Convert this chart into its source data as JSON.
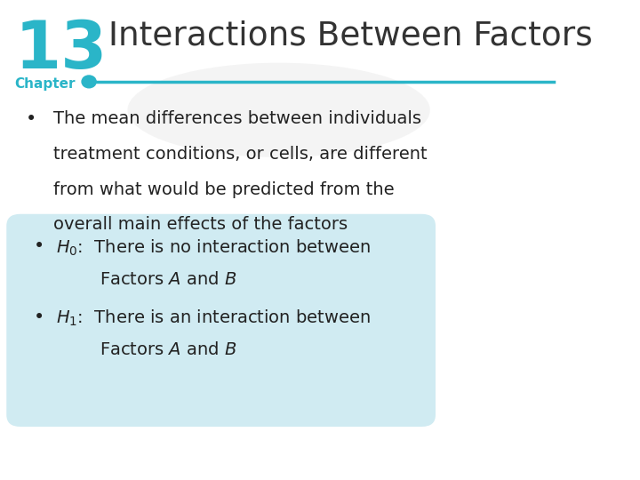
{
  "title": "Interactions Between Factors",
  "chapter_number": "13",
  "chapter_label": "Chapter",
  "chapter_number_color": "#2ab5c8",
  "chapter_label_color": "#2ab5c8",
  "title_color": "#333333",
  "line_color": "#2ab5c8",
  "background_color": "#ffffff",
  "bullet1_line1": "The mean differences between individuals",
  "bullet1_line2": "treatment conditions, or cells, are different",
  "bullet1_line3": "from what would be predicted from the",
  "bullet1_line4": "overall main effects of the factors",
  "bullet_box_color": "#c8e8f0",
  "text_color": "#222222",
  "figwidth": 7.2,
  "figheight": 5.4,
  "dpi": 100
}
